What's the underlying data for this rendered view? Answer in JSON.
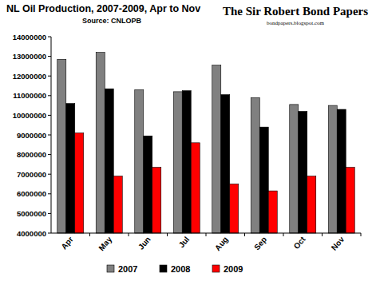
{
  "chart_data": {
    "type": "bar",
    "title": "NL Oil Production, 2007-2009, Apr to Nov",
    "subtitle": "Source: CNLOPB",
    "annotations": [
      "The Sir Robert Bond Papers",
      "bondpapers.blogspot.com"
    ],
    "categories": [
      "Apr",
      "May",
      "Jun",
      "Jul",
      "Aug",
      "Sep",
      "Oct",
      "Nov"
    ],
    "series": [
      {
        "name": "2007",
        "color": "#808080",
        "values": [
          12850000,
          13200000,
          11300000,
          11200000,
          12550000,
          10900000,
          10550000,
          10500000
        ]
      },
      {
        "name": "2008",
        "color": "#000000",
        "values": [
          10600000,
          11350000,
          8950000,
          11250000,
          11050000,
          9400000,
          10200000,
          10300000
        ]
      },
      {
        "name": "2009",
        "color": "#ff0000",
        "values": [
          9100000,
          6900000,
          7350000,
          8600000,
          6500000,
          6150000,
          6900000,
          7350000
        ]
      }
    ],
    "ylim": [
      4000000,
      14000000
    ],
    "yticks": [
      4000000,
      5000000,
      6000000,
      7000000,
      8000000,
      9000000,
      10000000,
      11000000,
      12000000,
      13000000,
      14000000
    ],
    "grid": false,
    "legend": "bottom"
  }
}
